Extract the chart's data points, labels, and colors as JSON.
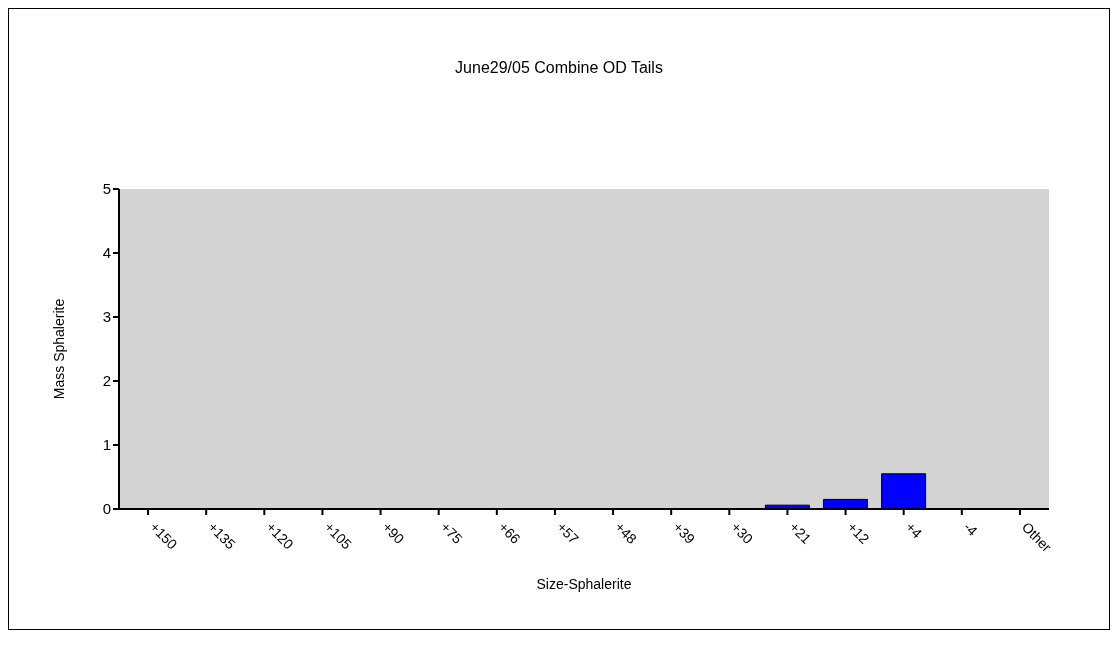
{
  "chart_data": {
    "type": "bar",
    "title": "June29/05 Combine OD Tails",
    "xlabel": "Size-Sphalerite",
    "ylabel": "Mass Sphalerite",
    "categories": [
      "+150",
      "+135",
      "+120",
      "+105",
      "+90",
      "+75",
      "+66",
      "+57",
      "+48",
      "+39",
      "+30",
      "+21",
      "+12",
      "+4",
      "-4",
      "Other"
    ],
    "values": [
      0,
      0,
      0,
      0,
      0,
      0,
      0,
      0,
      0,
      0,
      0,
      0.06,
      0.15,
      0.55,
      0,
      0
    ],
    "color": "#0000ff",
    "ylim": [
      0,
      5
    ],
    "yticks": [
      0,
      1,
      2,
      3,
      4,
      5
    ],
    "grid": false,
    "legend": false
  }
}
